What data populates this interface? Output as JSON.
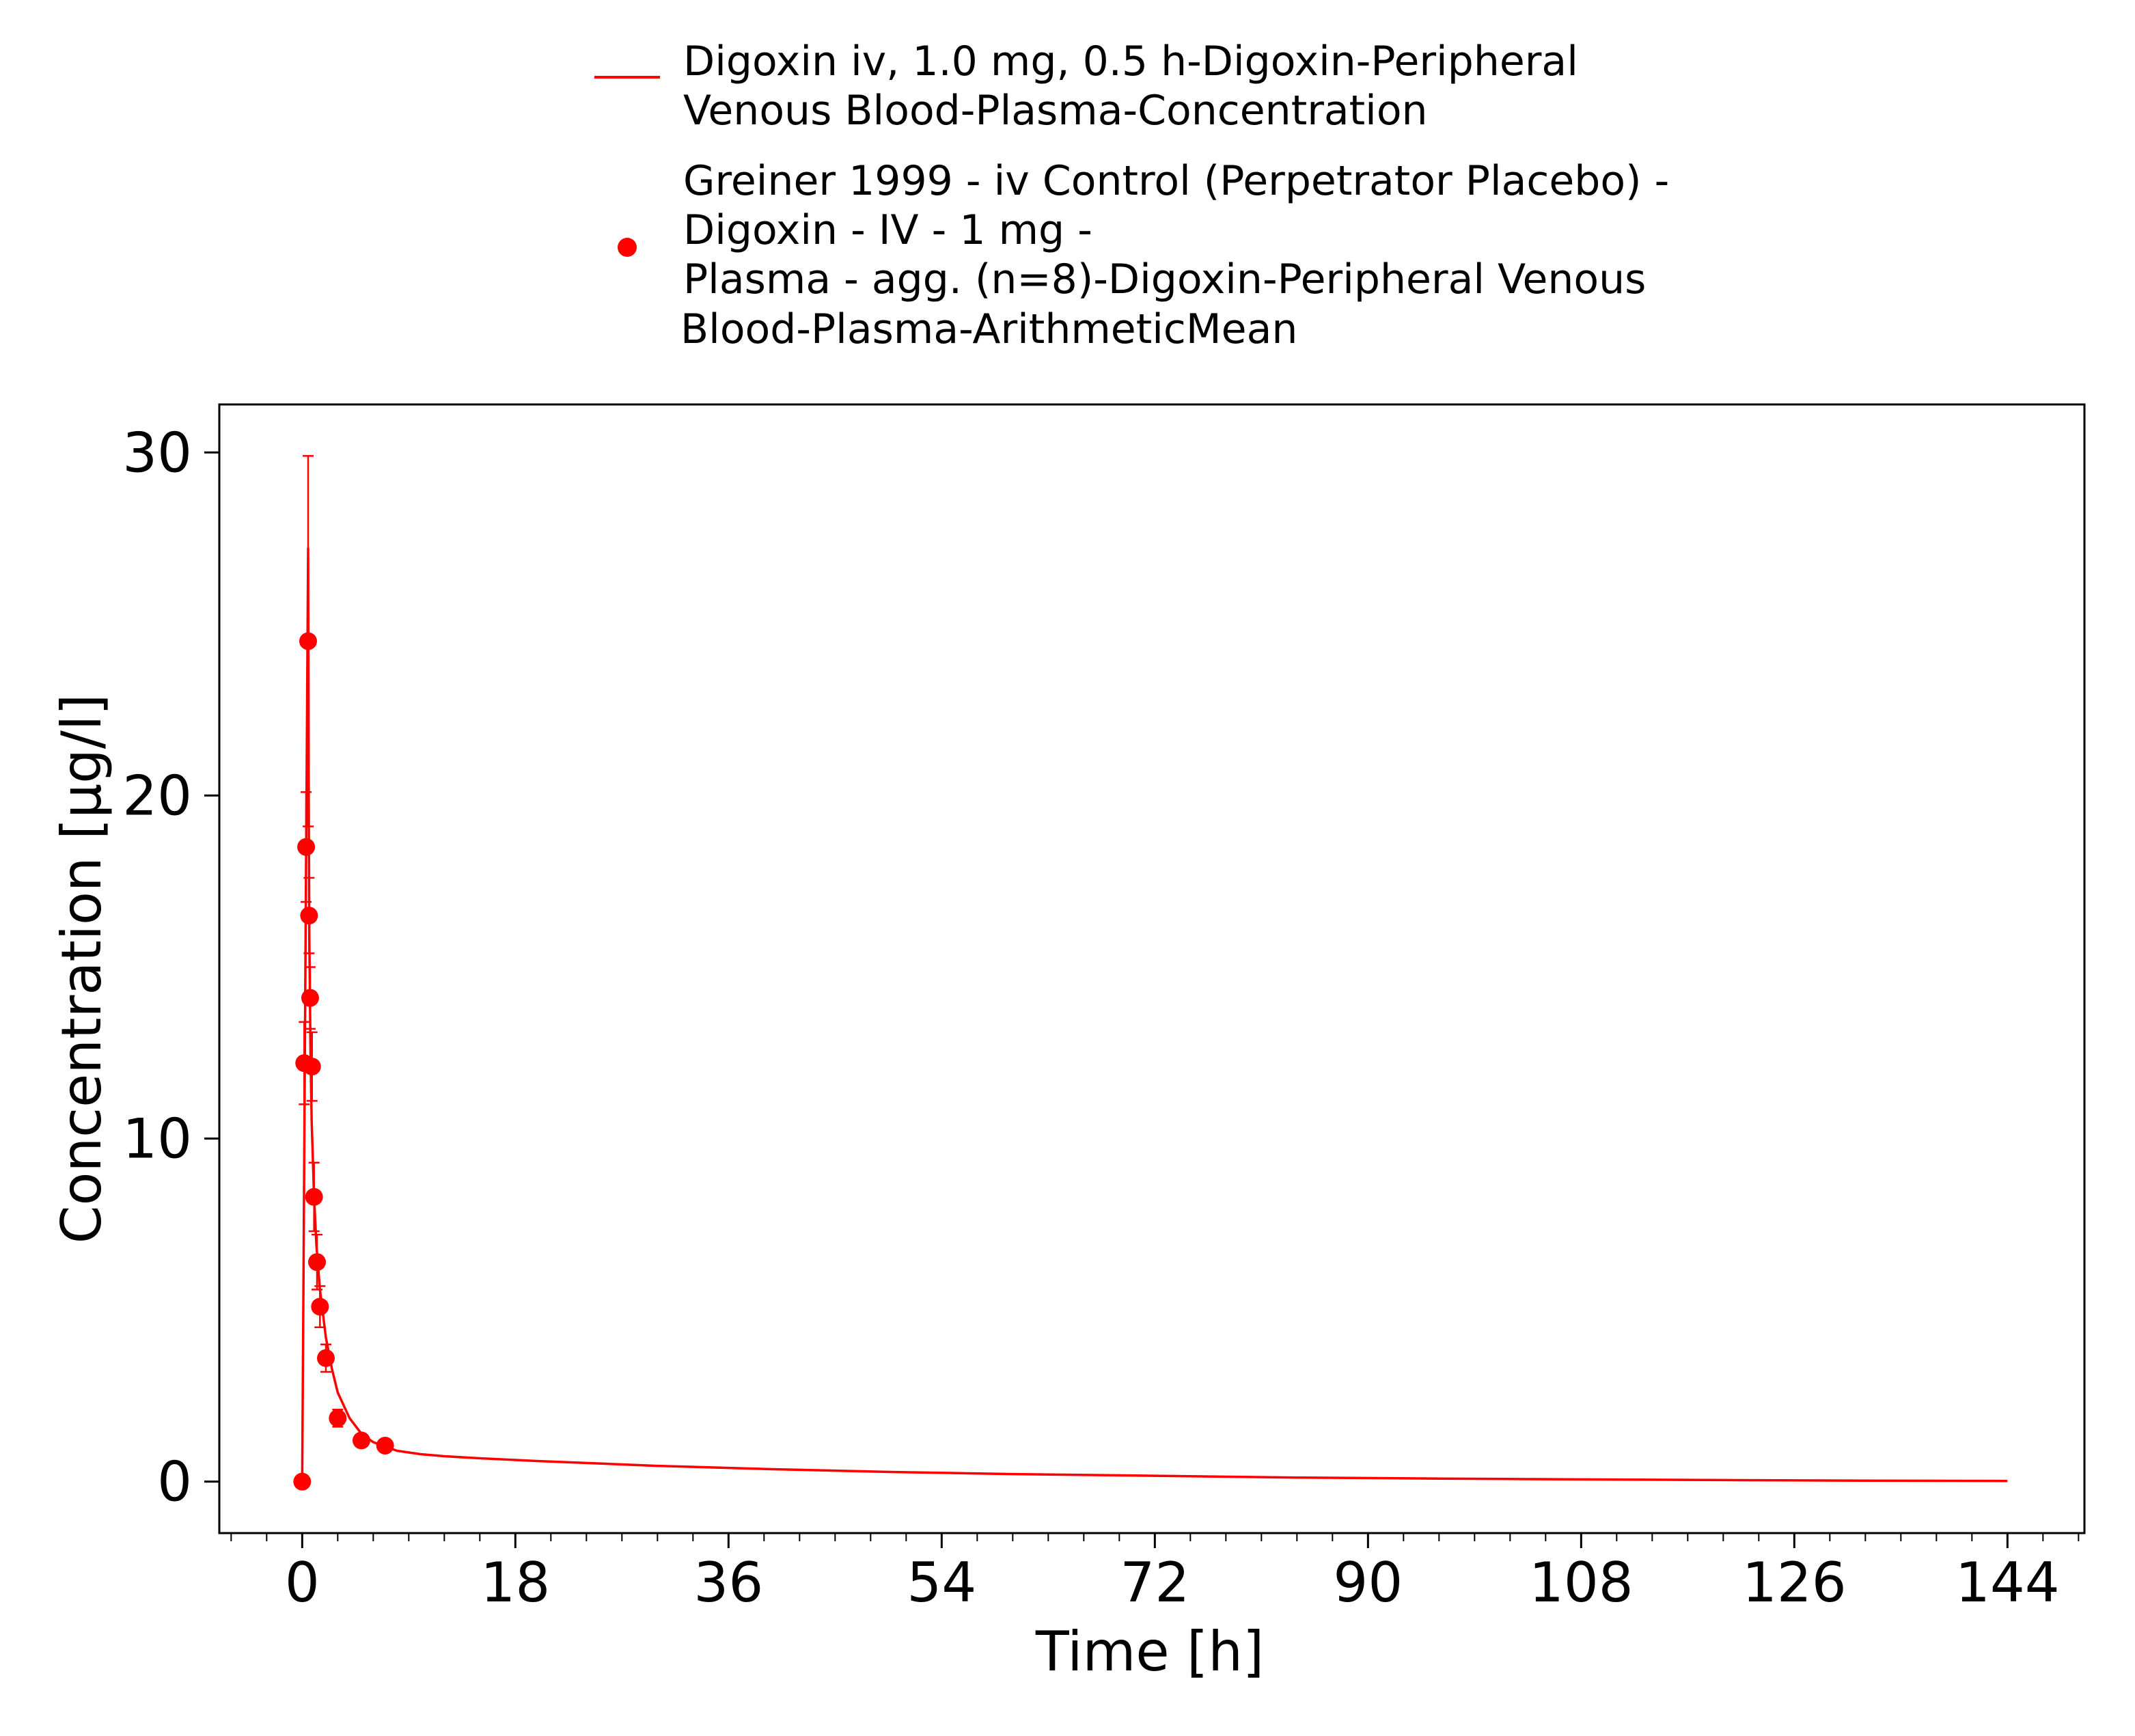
{
  "chart_data": {
    "type": "line",
    "xlabel": "Time [h]",
    "ylabel": "Concentration [µg/l]",
    "xlim": [
      -7,
      150.5
    ],
    "ylim": [
      -1.5,
      31.4
    ],
    "xticks": [
      0,
      18,
      36,
      54,
      72,
      90,
      108,
      126,
      144
    ],
    "yticks": [
      0,
      10,
      20,
      30
    ],
    "x_minor_step": 3,
    "y_minor_step": null,
    "grid": false,
    "legend_position": "top-center",
    "series": [
      {
        "name_lines": [
          "Digoxin iv, 1.0 mg, 0.5 h-Digoxin-Peripheral",
          "Venous Blood-Plasma-Concentration"
        ],
        "kind": "line",
        "color": "#ff0000",
        "x": [
          0,
          0.1,
          0.2,
          0.3,
          0.4,
          0.5,
          0.55,
          0.6,
          0.7,
          0.8,
          1.0,
          1.2,
          1.5,
          2.0,
          2.5,
          3.0,
          4.0,
          5.0,
          6.0,
          8.0,
          10.0,
          12.0,
          15.0,
          20.0,
          30.0,
          40.0,
          50.0,
          60.0,
          72.0,
          84.0,
          96.0,
          108.0,
          120.0,
          132.0,
          144.0
        ],
        "y": [
          0,
          5.5,
          11,
          16.5,
          22,
          27.2,
          20,
          16,
          12.5,
          10.5,
          8.3,
          6.9,
          5.6,
          4.2,
          3.3,
          2.6,
          1.85,
          1.4,
          1.15,
          0.9,
          0.8,
          0.74,
          0.68,
          0.6,
          0.46,
          0.36,
          0.28,
          0.22,
          0.17,
          0.12,
          0.09,
          0.065,
          0.045,
          0.03,
          0.02
        ]
      },
      {
        "name_lines": [
          "Greiner 1999 - iv Control (Perpetrator Placebo) -",
          "Digoxin - IV - 1 mg -",
          "Plasma - agg. (n=8)-Digoxin-Peripheral Venous",
          "Blood-Plasma-ArithmeticMean"
        ],
        "kind": "scatter",
        "color": "#ff0000",
        "x": [
          0,
          0.17,
          0.33,
          0.5,
          0.58,
          0.67,
          0.83,
          1.0,
          1.25,
          1.5,
          2.0,
          3.0,
          5.0,
          7.0
        ],
        "y": [
          0,
          12.2,
          18.5,
          24.5,
          16.5,
          14.1,
          12.1,
          8.3,
          6.4,
          5.1,
          3.6,
          1.85,
          1.2,
          1.05
        ],
        "error": [
          0,
          1.2,
          1.6,
          5.4,
          1.1,
          0.9,
          1.0,
          1.0,
          0.8,
          0.6,
          0.4,
          0.25,
          0.15,
          0.12
        ]
      }
    ]
  }
}
